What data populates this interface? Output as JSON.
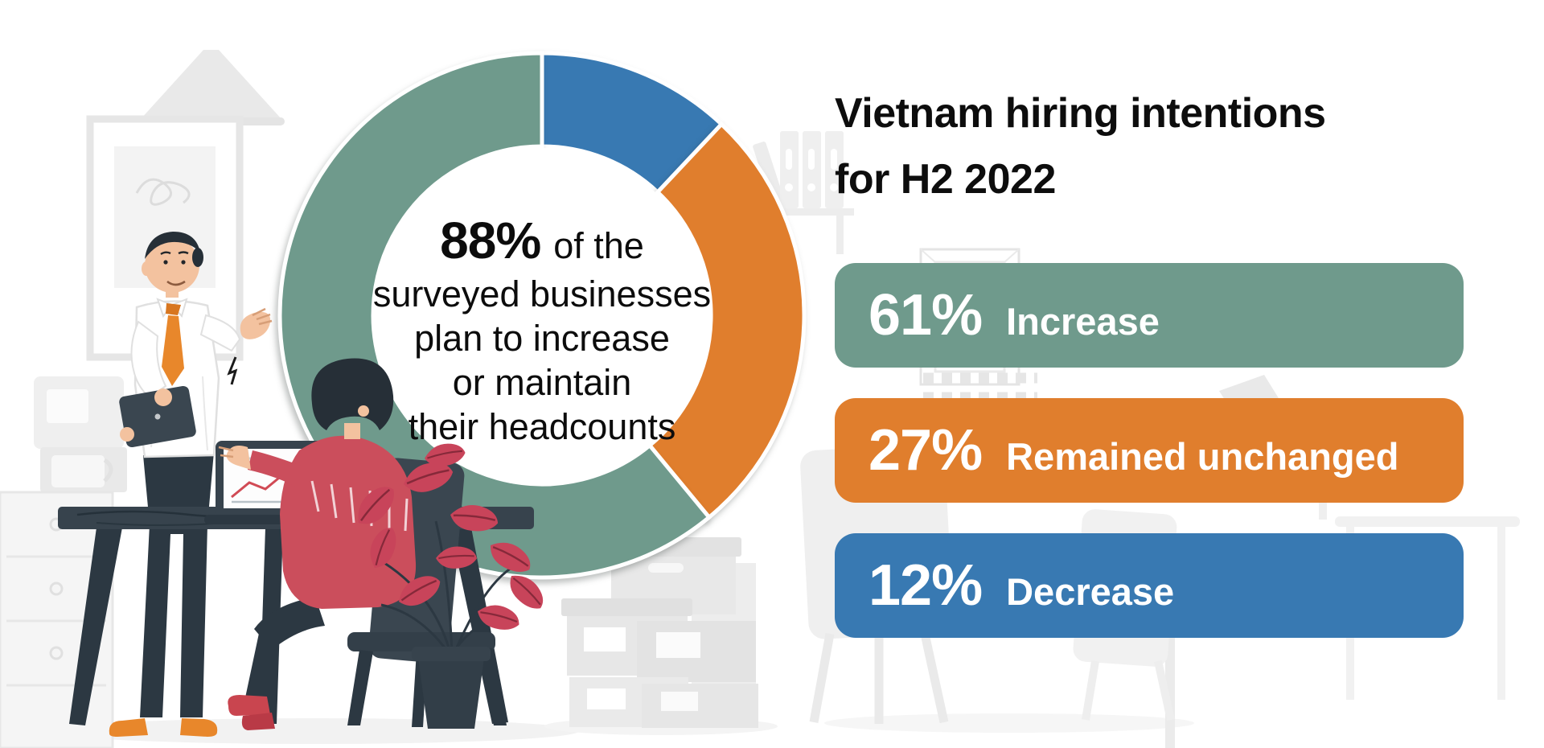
{
  "title": {
    "line1": "Vietnam hiring intentions",
    "line2": "for H2 2022"
  },
  "center": {
    "highlight": "88%",
    "line1_rest": "of the",
    "lines": [
      "surveyed businesses",
      "plan to increase",
      "or maintain",
      "their headcounts"
    ]
  },
  "stats": [
    {
      "value": "61%",
      "label": "Increase",
      "color": "#6F9A8C"
    },
    {
      "value": "27%",
      "label": "Remained unchanged",
      "color": "#E07E2D"
    },
    {
      "value": "12%",
      "label": "Decrease",
      "color": "#3879B2"
    }
  ],
  "palette": {
    "green": "#6F9A8C",
    "orange": "#E07E2D",
    "blue": "#3879B2",
    "text": "#0d0d0d"
  },
  "chart_data": {
    "type": "pie",
    "donut": true,
    "title": "Vietnam hiring intentions for H2 2022",
    "categories": [
      "Decrease",
      "Remained unchanged",
      "Increase"
    ],
    "values": [
      12,
      27,
      61
    ],
    "segments": [
      {
        "label": "Decrease",
        "value": 12,
        "color": "#3879B2"
      },
      {
        "label": "Remained unchanged",
        "value": 27,
        "color": "#E07E2D"
      },
      {
        "label": "Increase",
        "value": 61,
        "color": "#6F9A8C"
      }
    ],
    "start": "12-o-clock",
    "direction": "clockwise",
    "separator_color": "#ffffff",
    "center_note": "88% of the surveyed businesses plan to increase or maintain their headcounts"
  }
}
